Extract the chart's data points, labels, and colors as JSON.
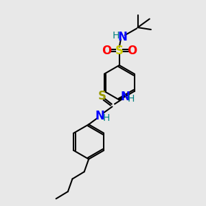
{
  "background_color": "#e8e8e8",
  "atom_colors": {
    "C": "#000000",
    "N": "#0000ff",
    "O": "#ff0000",
    "S_sulfo": "#cccc00",
    "S_thio": "#999900",
    "H": "#008080"
  },
  "bond_color": "#000000",
  "figsize": [
    3.0,
    3.0
  ],
  "dpi": 100,
  "xlim": [
    0,
    10
  ],
  "ylim": [
    0,
    10
  ]
}
